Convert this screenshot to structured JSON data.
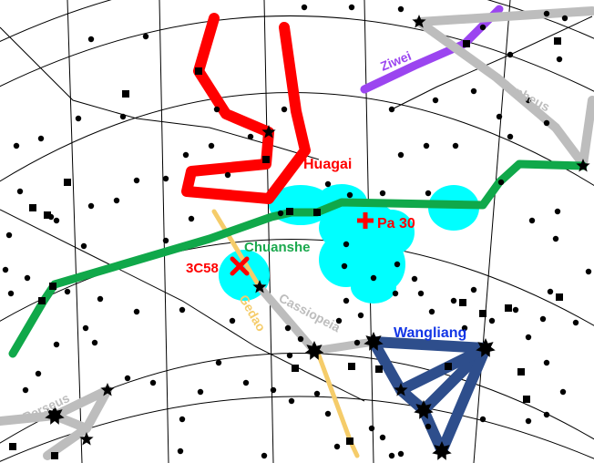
{
  "labels": {
    "huagai": "Huagai",
    "ziwei": "Ziwei",
    "cepheus": "Cepheus",
    "chuanshe": "Chuanshe",
    "pa30": "Pa 30",
    "c3c58": "3C58",
    "gedao": "Gedao",
    "cassiopeia": "Cassiopeia",
    "wangliang": "Wangliang",
    "perseus": "Perseus"
  },
  "colors": {
    "background": "#ffffff",
    "grid": "#000000",
    "huagai": "#ff0000",
    "ziwei": "#9b45f0",
    "cepheus": "#bdbdbd",
    "chuanshe_line": "#10a84a",
    "chuanshe_label": "#1aa84d",
    "chuanshe_halo": "#00ffff",
    "gedao": "#f5cc6a",
    "wangliang": "#2e4e8c",
    "wangliang_label": "#1336e6",
    "markers": "#ff0000",
    "stars": "#000000"
  },
  "icons": {
    "pa30": "cross-marker-icon",
    "c3c58": "x-marker-icon",
    "bright_star": "star-icon",
    "faint_star": "dot-icon",
    "variable_star": "square-icon"
  }
}
